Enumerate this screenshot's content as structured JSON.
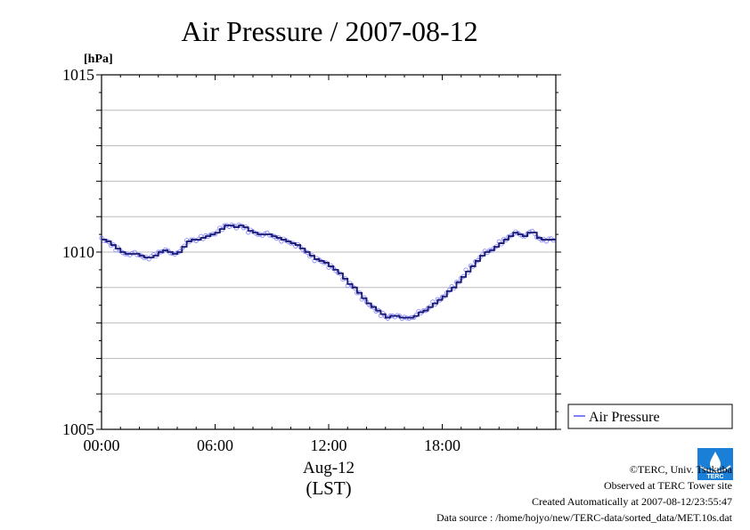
{
  "chart_data": {
    "type": "line",
    "title": "Air Pressure / 2007-08-12",
    "ylabel": "[hPa]",
    "xlabel": "Aug-12",
    "xlabel2": "(LST)",
    "ylim": [
      1005,
      1015
    ],
    "xlim": [
      0,
      24
    ],
    "y_ticks": [
      "1005",
      "1010",
      "1015"
    ],
    "y_tick_values": [
      1005,
      1010,
      1015
    ],
    "x_ticks": [
      "00:00",
      "06:00",
      "12:00",
      "18:00"
    ],
    "x_tick_values": [
      0,
      6,
      12,
      18
    ],
    "grid": true,
    "legend_position": "bottom-right, outside plot",
    "series": [
      {
        "name": "Air Pressure",
        "color": "#5555ff",
        "x": [
          0.0,
          0.25,
          0.5,
          0.75,
          1.0,
          1.25,
          1.5,
          1.75,
          2.0,
          2.25,
          2.5,
          2.75,
          3.0,
          3.25,
          3.5,
          3.75,
          4.0,
          4.25,
          4.5,
          4.75,
          5.0,
          5.25,
          5.5,
          5.75,
          6.0,
          6.25,
          6.5,
          6.75,
          7.0,
          7.25,
          7.5,
          7.75,
          8.0,
          8.25,
          8.5,
          8.75,
          9.0,
          9.25,
          9.5,
          9.75,
          10.0,
          10.25,
          10.5,
          10.75,
          11.0,
          11.25,
          11.5,
          11.75,
          12.0,
          12.25,
          12.5,
          12.75,
          13.0,
          13.25,
          13.5,
          13.75,
          14.0,
          14.25,
          14.5,
          14.75,
          15.0,
          15.25,
          15.5,
          15.75,
          16.0,
          16.25,
          16.5,
          16.75,
          17.0,
          17.25,
          17.5,
          17.75,
          18.0,
          18.25,
          18.5,
          18.75,
          19.0,
          19.25,
          19.5,
          19.75,
          20.0,
          20.25,
          20.5,
          20.75,
          21.0,
          21.25,
          21.5,
          21.75,
          22.0,
          22.25,
          22.5,
          22.75,
          23.0,
          23.25,
          23.5,
          23.75
        ],
        "values": [
          1010.35,
          1010.3,
          1010.2,
          1010.1,
          1010.0,
          1009.95,
          1009.95,
          1009.95,
          1009.9,
          1009.85,
          1009.85,
          1009.9,
          1010.0,
          1010.05,
          1010.0,
          1009.95,
          1010.0,
          1010.15,
          1010.3,
          1010.35,
          1010.35,
          1010.4,
          1010.45,
          1010.5,
          1010.55,
          1010.65,
          1010.75,
          1010.75,
          1010.7,
          1010.75,
          1010.7,
          1010.6,
          1010.55,
          1010.5,
          1010.5,
          1010.5,
          1010.45,
          1010.4,
          1010.35,
          1010.3,
          1010.25,
          1010.2,
          1010.1,
          1010.0,
          1009.9,
          1009.8,
          1009.75,
          1009.7,
          1009.6,
          1009.5,
          1009.4,
          1009.25,
          1009.1,
          1009.0,
          1008.85,
          1008.7,
          1008.55,
          1008.45,
          1008.35,
          1008.25,
          1008.15,
          1008.2,
          1008.2,
          1008.15,
          1008.15,
          1008.15,
          1008.2,
          1008.3,
          1008.35,
          1008.45,
          1008.55,
          1008.65,
          1008.75,
          1008.9,
          1009.0,
          1009.15,
          1009.3,
          1009.45,
          1009.6,
          1009.75,
          1009.9,
          1010.0,
          1010.05,
          1010.15,
          1010.25,
          1010.35,
          1010.45,
          1010.55,
          1010.5,
          1010.45,
          1010.55,
          1010.55,
          1010.4,
          1010.35,
          1010.35,
          1010.35
        ]
      }
    ]
  },
  "footer": {
    "copyright": "©TERC, Univ. Tsukuba",
    "observed": "Observed at TERC Tower site",
    "created": "Created Automatically at 2007-08-12/23:55:47",
    "source": "Data source : /home/hojyo/new/TERC-data/sorted_data/MET.10s.dat"
  },
  "logo": {
    "text": "TERC",
    "color": "#1a7fd6"
  }
}
